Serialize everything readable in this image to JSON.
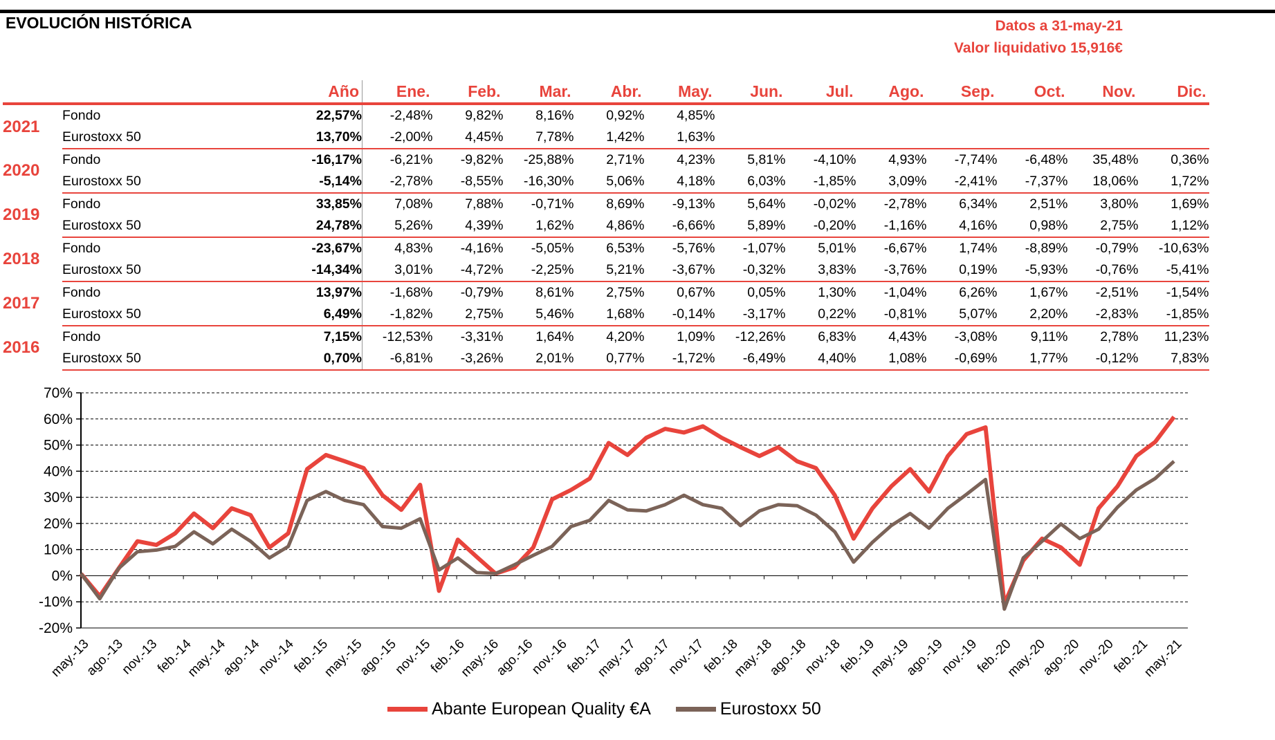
{
  "header": {
    "title": "EVOLUCIÓN HISTÓRICA",
    "date_line": "Datos a 31-may-21",
    "nav_line": "Valor liquidativo 15,916€"
  },
  "table": {
    "annual_header": "Año",
    "months": [
      "Ene.",
      "Feb.",
      "Mar.",
      "Abr.",
      "May.",
      "Jun.",
      "Jul.",
      "Ago.",
      "Sep.",
      "Oct.",
      "Nov.",
      "Dic."
    ],
    "rows": [
      {
        "year": "2021",
        "fondo": {
          "label": "Fondo",
          "annual": "22,57%",
          "months": [
            "-2,48%",
            "9,82%",
            "8,16%",
            "0,92%",
            "4,85%",
            "",
            "",
            "",
            "",
            "",
            "",
            ""
          ]
        },
        "index": {
          "label": "Eurostoxx 50",
          "annual": "13,70%",
          "months": [
            "-2,00%",
            "4,45%",
            "7,78%",
            "1,42%",
            "1,63%",
            "",
            "",
            "",
            "",
            "",
            "",
            ""
          ]
        }
      },
      {
        "year": "2020",
        "fondo": {
          "label": "Fondo",
          "annual": "-16,17%",
          "months": [
            "-6,21%",
            "-9,82%",
            "-25,88%",
            "2,71%",
            "4,23%",
            "5,81%",
            "-4,10%",
            "4,93%",
            "-7,74%",
            "-6,48%",
            "35,48%",
            "0,36%"
          ]
        },
        "index": {
          "label": "Eurostoxx 50",
          "annual": "-5,14%",
          "months": [
            "-2,78%",
            "-8,55%",
            "-16,30%",
            "5,06%",
            "4,18%",
            "6,03%",
            "-1,85%",
            "3,09%",
            "-2,41%",
            "-7,37%",
            "18,06%",
            "1,72%"
          ]
        }
      },
      {
        "year": "2019",
        "fondo": {
          "label": "Fondo",
          "annual": "33,85%",
          "months": [
            "7,08%",
            "7,88%",
            "-0,71%",
            "8,69%",
            "-9,13%",
            "5,64%",
            "-0,02%",
            "-2,78%",
            "6,34%",
            "2,51%",
            "3,80%",
            "1,69%"
          ]
        },
        "index": {
          "label": "Eurostoxx 50",
          "annual": "24,78%",
          "months": [
            "5,26%",
            "4,39%",
            "1,62%",
            "4,86%",
            "-6,66%",
            "5,89%",
            "-0,20%",
            "-1,16%",
            "4,16%",
            "0,98%",
            "2,75%",
            "1,12%"
          ]
        }
      },
      {
        "year": "2018",
        "fondo": {
          "label": "Fondo",
          "annual": "-23,67%",
          "months": [
            "4,83%",
            "-4,16%",
            "-5,05%",
            "6,53%",
            "-5,76%",
            "-1,07%",
            "5,01%",
            "-6,67%",
            "1,74%",
            "-8,89%",
            "-0,79%",
            "-10,63%"
          ]
        },
        "index": {
          "label": "Eurostoxx 50",
          "annual": "-14,34%",
          "months": [
            "3,01%",
            "-4,72%",
            "-2,25%",
            "5,21%",
            "-3,67%",
            "-0,32%",
            "3,83%",
            "-3,76%",
            "0,19%",
            "-5,93%",
            "-0,76%",
            "-5,41%"
          ]
        }
      },
      {
        "year": "2017",
        "fondo": {
          "label": "Fondo",
          "annual": "13,97%",
          "months": [
            "-1,68%",
            "-0,79%",
            "8,61%",
            "2,75%",
            "0,67%",
            "0,05%",
            "1,30%",
            "-1,04%",
            "6,26%",
            "1,67%",
            "-2,51%",
            "-1,54%"
          ]
        },
        "index": {
          "label": "Eurostoxx 50",
          "annual": "6,49%",
          "months": [
            "-1,82%",
            "2,75%",
            "5,46%",
            "1,68%",
            "-0,14%",
            "-3,17%",
            "0,22%",
            "-0,81%",
            "5,07%",
            "2,20%",
            "-2,83%",
            "-1,85%"
          ]
        }
      },
      {
        "year": "2016",
        "fondo": {
          "label": "Fondo",
          "annual": "7,15%",
          "months": [
            "-12,53%",
            "-3,31%",
            "1,64%",
            "4,20%",
            "1,09%",
            "-12,26%",
            "6,83%",
            "4,43%",
            "-3,08%",
            "9,11%",
            "2,78%",
            "11,23%"
          ]
        },
        "index": {
          "label": "Eurostoxx 50",
          "annual": "0,70%",
          "months": [
            "-6,81%",
            "-3,26%",
            "2,01%",
            "0,77%",
            "-1,72%",
            "-6,49%",
            "4,40%",
            "1,08%",
            "-0,69%",
            "1,77%",
            "-0,12%",
            "7,83%"
          ]
        }
      }
    ]
  },
  "chart_data": {
    "type": "line",
    "yticks": [
      "70%",
      "60%",
      "50%",
      "40%",
      "30%",
      "20%",
      "10%",
      "0%",
      "-10%",
      "-20%"
    ],
    "ylim": [
      -20,
      70
    ],
    "ytick_values": [
      70,
      60,
      50,
      40,
      30,
      20,
      10,
      0,
      -10,
      -20
    ],
    "xticks": [
      "may.-13",
      "ago.-13",
      "nov.-13",
      "feb.-14",
      "may.-14",
      "ago.-14",
      "nov.-14",
      "feb.-15",
      "may.-15",
      "ago.-15",
      "nov.-15",
      "feb.-16",
      "may.-16",
      "ago.-16",
      "nov.-16",
      "feb.-17",
      "may.-17",
      "ago.-17",
      "nov.-17",
      "feb.-18",
      "may.-18",
      "ago.-18",
      "nov.-18",
      "feb.-19",
      "may.-19",
      "ago.-19",
      "nov.-19",
      "feb.-20",
      "may.-20",
      "ago.-20",
      "nov.-20",
      "feb.-21",
      "may.-21"
    ],
    "grid": "horizontal dashed",
    "legend_position": "bottom",
    "series": [
      {
        "name": "Abante European Quality €A",
        "color": "#e8443c",
        "values": [
          0,
          -7,
          2,
          14,
          11,
          17,
          23,
          19,
          25,
          24,
          10,
          17,
          40,
          47,
          43,
          42,
          30,
          26,
          34,
          -5,
          13,
          8,
          0,
          4,
          10,
          30,
          32,
          38,
          50,
          47,
          52,
          57,
          54,
          58,
          52,
          50,
          45,
          50,
          43,
          42,
          30,
          15,
          25,
          35,
          40,
          33,
          45,
          55,
          56,
          -10,
          5,
          15,
          10,
          5,
          25,
          35,
          45,
          52,
          60
        ]
      },
      {
        "name": "Eurostoxx 50",
        "color": "#7b6358",
        "values": [
          0,
          -8,
          2,
          10,
          9,
          12,
          16,
          13,
          17,
          14,
          6,
          12,
          28,
          33,
          28,
          28,
          18,
          19,
          21,
          3,
          6,
          2,
          0,
          5,
          7,
          12,
          18,
          22,
          28,
          26,
          24,
          28,
          30,
          28,
          25,
          20,
          24,
          28,
          26,
          24,
          16,
          6,
          12,
          20,
          23,
          19,
          25,
          32,
          36,
          -12,
          6,
          14,
          19,
          15,
          17,
          27,
          32,
          38,
          43
        ]
      }
    ]
  }
}
